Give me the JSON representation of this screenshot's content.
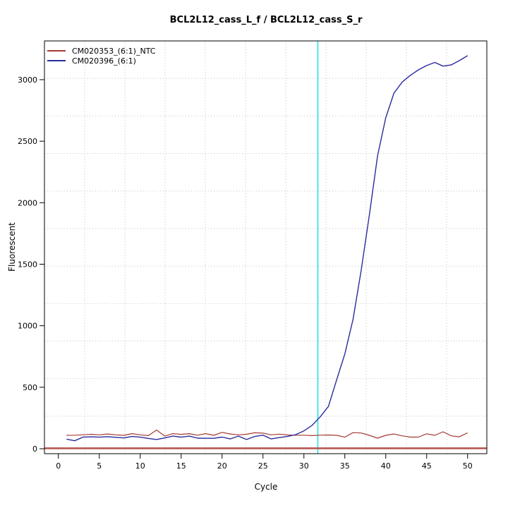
{
  "chart_data": {
    "type": "line",
    "title": "BCL2L12_cass_L_f / BCL2L12_cass_S_r",
    "xlabel": "Cycle",
    "ylabel": "Fluorescent",
    "x_ticks": [
      0,
      5,
      10,
      15,
      20,
      25,
      30,
      35,
      40,
      45,
      50
    ],
    "y_ticks": [
      0,
      500,
      1000,
      1500,
      2000,
      2500,
      3000
    ],
    "xlim": [
      -1.7,
      52.35
    ],
    "ylim": [
      -40,
      3315
    ],
    "grid": {
      "divisions_x": 11,
      "divisions_y": 11,
      "color": "#c3c3c3",
      "style": "dotted"
    },
    "legend_position": "top-left",
    "x": [
      1,
      2,
      3,
      4,
      5,
      6,
      7,
      8,
      9,
      10,
      11,
      12,
      13,
      14,
      15,
      16,
      17,
      18,
      19,
      20,
      21,
      22,
      23,
      24,
      25,
      26,
      27,
      28,
      29,
      30,
      31,
      32,
      33,
      34,
      35,
      36,
      37,
      38,
      39,
      40,
      41,
      42,
      43,
      44,
      45,
      46,
      47,
      48,
      49,
      50
    ],
    "series": [
      {
        "name": "CM020353_(6:1)_NTC",
        "color": "#a43a33",
        "values": [
          109,
          110,
          113,
          118,
          113,
          120,
          113,
          109,
          123,
          113,
          107,
          152,
          103,
          123,
          117,
          123,
          110,
          123,
          109,
          133,
          120,
          113,
          118,
          130,
          127,
          113,
          119,
          112,
          110,
          110,
          107,
          110,
          112,
          109,
          94,
          131,
          128,
          109,
          86,
          109,
          120,
          105,
          95,
          95,
          122,
          109,
          138,
          105,
          97,
          129
        ]
      },
      {
        "name": "CM020396_(6:1)",
        "color": "#2b2b9e",
        "values": [
          78,
          65,
          94,
          97,
          94,
          98,
          93,
          88,
          100,
          94,
          84,
          75,
          88,
          103,
          94,
          103,
          86,
          85,
          85,
          95,
          80,
          103,
          75,
          100,
          110,
          80,
          91,
          100,
          115,
          145,
          190,
          260,
          345,
          560,
          770,
          1050,
          1450,
          1900,
          2380,
          2690,
          2890,
          2980,
          3035,
          3080,
          3115,
          3140,
          3110,
          3120,
          3155,
          3195
        ]
      }
    ],
    "ct_line": {
      "orientation": "vertical",
      "cycle": 31.7,
      "color": "#1ae1e1"
    },
    "baseline": {
      "orientation": "horizontal",
      "value": 4,
      "color": "#b5504b"
    },
    "axis_color": "#000000"
  }
}
